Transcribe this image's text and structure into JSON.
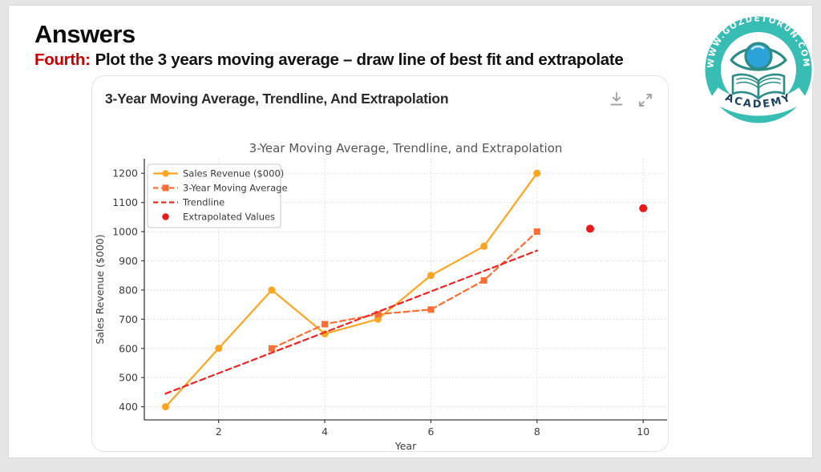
{
  "header": {
    "title": "Answers",
    "label": "Fourth:",
    "subtitle": "Plot the 3 years moving average – draw line of best fit and extrapolate",
    "label_color": "#c80000"
  },
  "card": {
    "title": "3-Year Moving Average, Trendline, And Extrapolation",
    "icons": [
      "download-icon",
      "expand-icon"
    ],
    "icon_color": "#a3a3a3"
  },
  "logo": {
    "ring_text": "WWW.GOZDETORUN.COM",
    "banner_text": "ACADEMY",
    "ring_color": "#38bdb4",
    "ring_text_color": "#ffffff",
    "banner_text_color": "#1d3f5e",
    "icon_outline_color": "#2c8c86",
    "iris_color": "#2ba3d8"
  },
  "chart_data": {
    "type": "line",
    "title": "3-Year Moving Average, Trendline, and Extrapolation",
    "xlabel": "Year",
    "ylabel": "Sales Revenue ($000)",
    "xlim": [
      0.6,
      10.45
    ],
    "ylim": [
      355,
      1250
    ],
    "xticks": [
      2,
      4,
      6,
      8,
      10
    ],
    "yticks": [
      400,
      500,
      600,
      700,
      800,
      900,
      1000,
      1100,
      1200
    ],
    "grid": true,
    "legend_position": "upper-left",
    "series": [
      {
        "name": "Sales Revenue ($000)",
        "type": "line",
        "style": "solid",
        "marker": "circle",
        "color": "#ffa51f",
        "x": [
          1,
          2,
          3,
          4,
          5,
          6,
          7,
          8
        ],
        "y": [
          400,
          600,
          800,
          650,
          700,
          850,
          950,
          1200
        ]
      },
      {
        "name": "3-Year Moving Average",
        "type": "line",
        "style": "dashed",
        "marker": "square",
        "color": "#fb6d33",
        "x": [
          3,
          4,
          5,
          6,
          7,
          8
        ],
        "y": [
          600,
          683,
          717,
          733,
          833,
          1000
        ]
      },
      {
        "name": "Trendline",
        "type": "line",
        "style": "dashed",
        "marker": "none",
        "color": "#ee2424",
        "x": [
          1,
          8
        ],
        "y": [
          445,
          935
        ]
      },
      {
        "name": "Extrapolated Values",
        "type": "scatter",
        "marker": "circle",
        "color": "#e81a1a",
        "x": [
          9,
          10
        ],
        "y": [
          1010,
          1080
        ]
      }
    ]
  }
}
